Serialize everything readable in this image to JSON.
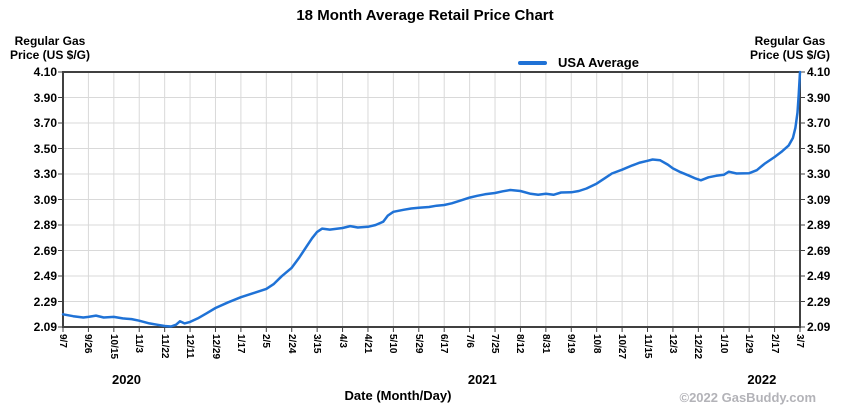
{
  "watermark": "©2022 GasBuddy.com",
  "y_axis_label": {
    "line1": "Regular Gas",
    "line2": "Price (US $/G)"
  },
  "colors": {
    "line": "#1f72d6",
    "grid": "#d9d9d9",
    "plot_border": "#404040",
    "text": "#000000",
    "watermark": "#b3b3b8"
  },
  "chart_data": {
    "type": "line",
    "title": "18 Month Average Retail Price Chart",
    "xlabel": "Date (Month/Day)",
    "ylabel": "Regular Gas Price (US $/G)",
    "grid": true,
    "legend_position": "top",
    "ylim": [
      2.09,
      4.1
    ],
    "y_tick_labels": [
      "4.10",
      "3.90",
      "3.70",
      "3.50",
      "3.30",
      "3.09",
      "2.89",
      "2.69",
      "2.49",
      "2.29",
      "2.09"
    ],
    "x_tick_labels": [
      "9/7",
      "9/26",
      "10/15",
      "11/3",
      "11/22",
      "12/11",
      "12/29",
      "1/17",
      "2/5",
      "2/24",
      "3/15",
      "4/3",
      "4/21",
      "5/10",
      "5/29",
      "6/17",
      "7/6",
      "7/25",
      "8/12",
      "8/31",
      "9/19",
      "10/8",
      "10/27",
      "11/15",
      "12/3",
      "12/22",
      "1/10",
      "1/29",
      "2/17",
      "3/7"
    ],
    "xlim_dates": [
      "9/7/2020",
      "3/7/2022"
    ],
    "year_labels": [
      {
        "text": "2020",
        "center_tick_index": 2.5
      },
      {
        "text": "2021",
        "center_tick_index": 16.5
      },
      {
        "text": "2022",
        "center_tick_index": 27.5
      }
    ],
    "series": [
      {
        "name": "USA Average",
        "color": "#1f72d6",
        "points": [
          [
            0,
            2.19
          ],
          [
            0.4,
            2.175
          ],
          [
            0.8,
            2.165
          ],
          [
            1,
            2.17
          ],
          [
            1.3,
            2.18
          ],
          [
            1.6,
            2.165
          ],
          [
            2,
            2.17
          ],
          [
            2.35,
            2.158
          ],
          [
            2.7,
            2.152
          ],
          [
            3,
            2.14
          ],
          [
            3.4,
            2.118
          ],
          [
            3.7,
            2.108
          ],
          [
            4,
            2.098
          ],
          [
            4.25,
            2.094
          ],
          [
            4.45,
            2.108
          ],
          [
            4.6,
            2.135
          ],
          [
            4.78,
            2.118
          ],
          [
            5,
            2.13
          ],
          [
            5.3,
            2.158
          ],
          [
            5.65,
            2.198
          ],
          [
            6,
            2.24
          ],
          [
            6.5,
            2.285
          ],
          [
            7,
            2.325
          ],
          [
            7.5,
            2.357
          ],
          [
            8,
            2.39
          ],
          [
            8.3,
            2.43
          ],
          [
            8.6,
            2.49
          ],
          [
            9,
            2.557
          ],
          [
            9.3,
            2.638
          ],
          [
            9.6,
            2.73
          ],
          [
            9.8,
            2.79
          ],
          [
            10,
            2.84
          ],
          [
            10.2,
            2.866
          ],
          [
            10.5,
            2.858
          ],
          [
            11,
            2.87
          ],
          [
            11.3,
            2.885
          ],
          [
            11.6,
            2.874
          ],
          [
            12,
            2.88
          ],
          [
            12.3,
            2.894
          ],
          [
            12.6,
            2.92
          ],
          [
            12.78,
            2.968
          ],
          [
            13,
            2.998
          ],
          [
            13.4,
            3.014
          ],
          [
            13.7,
            3.024
          ],
          [
            14,
            3.03
          ],
          [
            14.4,
            3.036
          ],
          [
            14.7,
            3.046
          ],
          [
            15,
            3.052
          ],
          [
            15.3,
            3.065
          ],
          [
            15.7,
            3.09
          ],
          [
            16,
            3.11
          ],
          [
            16.3,
            3.124
          ],
          [
            16.6,
            3.136
          ],
          [
            17,
            3.146
          ],
          [
            17.3,
            3.16
          ],
          [
            17.6,
            3.17
          ],
          [
            18,
            3.162
          ],
          [
            18.4,
            3.14
          ],
          [
            18.7,
            3.132
          ],
          [
            19,
            3.14
          ],
          [
            19.3,
            3.132
          ],
          [
            19.6,
            3.15
          ],
          [
            20,
            3.152
          ],
          [
            20.3,
            3.162
          ],
          [
            20.6,
            3.182
          ],
          [
            21,
            3.22
          ],
          [
            21.3,
            3.26
          ],
          [
            21.6,
            3.3
          ],
          [
            22,
            3.33
          ],
          [
            22.4,
            3.364
          ],
          [
            22.7,
            3.386
          ],
          [
            23,
            3.4
          ],
          [
            23.2,
            3.41
          ],
          [
            23.5,
            3.404
          ],
          [
            23.8,
            3.37
          ],
          [
            24,
            3.34
          ],
          [
            24.3,
            3.31
          ],
          [
            24.6,
            3.286
          ],
          [
            24.9,
            3.26
          ],
          [
            25.1,
            3.246
          ],
          [
            25.4,
            3.27
          ],
          [
            25.7,
            3.282
          ],
          [
            26,
            3.29
          ],
          [
            26.2,
            3.314
          ],
          [
            26.5,
            3.3
          ],
          [
            27,
            3.302
          ],
          [
            27.3,
            3.326
          ],
          [
            27.6,
            3.376
          ],
          [
            28,
            3.43
          ],
          [
            28.3,
            3.476
          ],
          [
            28.55,
            3.52
          ],
          [
            28.72,
            3.58
          ],
          [
            28.82,
            3.66
          ],
          [
            28.9,
            3.78
          ],
          [
            28.95,
            3.92
          ],
          [
            29,
            4.1
          ]
        ]
      }
    ]
  }
}
